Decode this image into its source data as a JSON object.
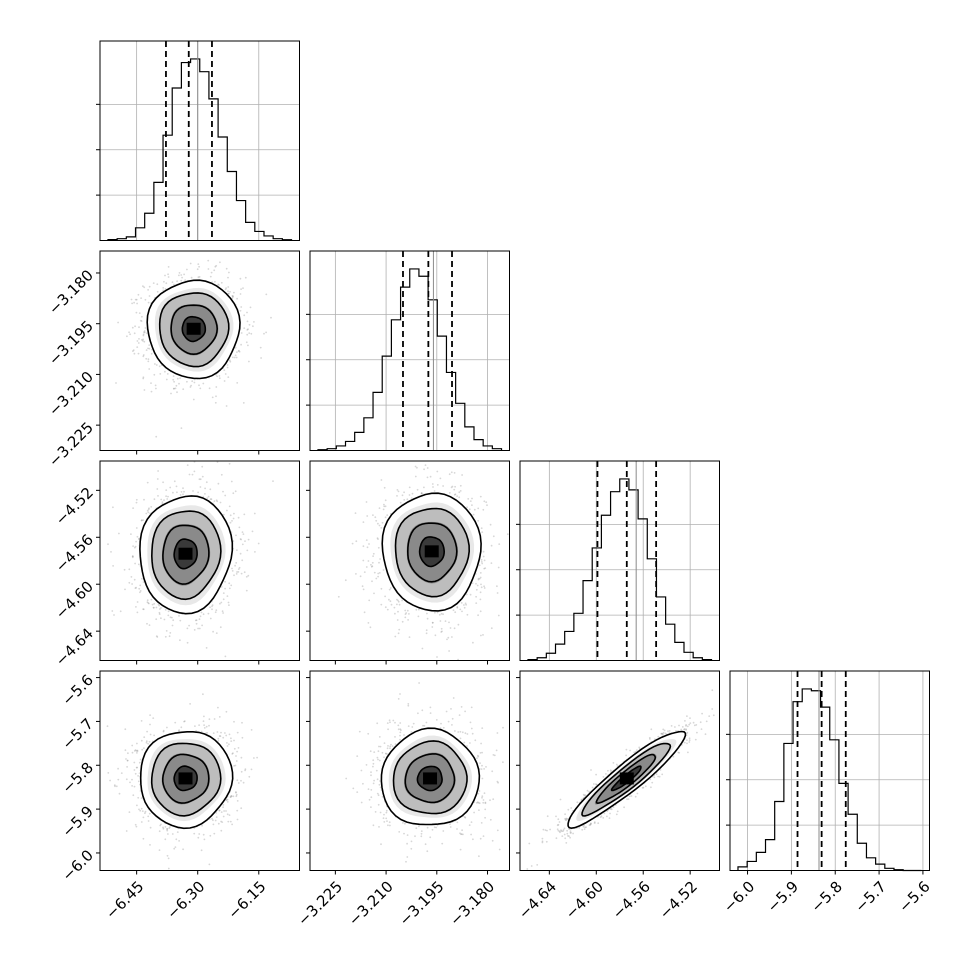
{
  "chart_data": {
    "type": "corner",
    "parameters": [
      {
        "key": "p0",
        "range": [
          -6.54,
          -6.05
        ],
        "ticks": [
          -6.45,
          -6.3,
          -6.15
        ],
        "tick_labels": [
          "−6.45",
          "−6.30",
          "−6.15"
        ],
        "quantiles": [
          -6.378,
          -6.322,
          -6.265
        ],
        "truth": -6.3,
        "hist": [
          0.005,
          0.01,
          0.02,
          0.07,
          0.15,
          0.32,
          0.58,
          0.84,
          0.98,
          1.0,
          0.93,
          0.78,
          0.57,
          0.38,
          0.22,
          0.1,
          0.05,
          0.025,
          0.01,
          0.004
        ]
      },
      {
        "key": "p1",
        "range": [
          -3.2325,
          -3.1735
        ],
        "ticks": [
          -3.225,
          -3.21,
          -3.195,
          -3.18
        ],
        "tick_labels": [
          "−3.225",
          "−3.210",
          "−3.195",
          "−3.180"
        ],
        "quantiles": [
          -3.205,
          -3.1975,
          -3.1905
        ],
        "truth": -3.196,
        "hist": [
          0.004,
          0.01,
          0.025,
          0.05,
          0.1,
          0.18,
          0.32,
          0.52,
          0.72,
          0.9,
          1.0,
          0.96,
          0.83,
          0.63,
          0.43,
          0.26,
          0.13,
          0.06,
          0.025,
          0.01
        ]
      },
      {
        "key": "p2",
        "range": [
          -4.665,
          -4.495
        ],
        "ticks": [
          -4.64,
          -4.6,
          -4.56,
          -4.52
        ],
        "tick_labels": [
          "−4.64",
          "−4.60",
          "−4.56",
          "−4.52"
        ],
        "quantiles": [
          -4.599,
          -4.574,
          -4.549
        ],
        "truth": -4.566,
        "hist": [
          0.005,
          0.015,
          0.04,
          0.09,
          0.16,
          0.26,
          0.44,
          0.62,
          0.8,
          0.93,
          1.0,
          0.94,
          0.78,
          0.56,
          0.35,
          0.2,
          0.1,
          0.045,
          0.015,
          0.005
        ]
      },
      {
        "key": "p3",
        "range": [
          -6.04,
          -5.585
        ],
        "ticks": [
          -6.0,
          -5.9,
          -5.8,
          -5.7,
          -5.6
        ],
        "tick_labels": [
          "−6.0",
          "−5.9",
          "−5.8",
          "−5.7",
          "−5.6"
        ],
        "quantiles": [
          -5.886,
          -5.831,
          -5.776
        ],
        "truth": -5.837,
        "hist": [
          0.02,
          0.05,
          0.1,
          0.17,
          0.38,
          0.7,
          0.93,
          1.0,
          0.99,
          0.9,
          0.72,
          0.48,
          0.31,
          0.15,
          0.07,
          0.035,
          0.012,
          0.004,
          0.0,
          0.0
        ]
      }
    ],
    "joint": [
      {
        "row": 1,
        "col": 0,
        "rho": 0.0,
        "mode": [
          -6.31,
          -3.1965
        ]
      },
      {
        "row": 2,
        "col": 0,
        "rho": 0.05,
        "mode": [
          -6.33,
          -4.574
        ]
      },
      {
        "row": 2,
        "col": 1,
        "rho": 0.0,
        "mode": [
          -3.1965,
          -4.572
        ]
      },
      {
        "row": 3,
        "col": 0,
        "rho": 0.03,
        "mode": [
          -6.33,
          -5.83
        ]
      },
      {
        "row": 3,
        "col": 1,
        "rho": 0.02,
        "mode": [
          -3.197,
          -5.83
        ]
      },
      {
        "row": 3,
        "col": 2,
        "rho": 0.93,
        "mode": [
          -4.574,
          -5.83
        ]
      }
    ],
    "contour_levels_sigma": [
      0.5,
      1.0,
      1.5,
      2.0
    ],
    "grid": true
  }
}
